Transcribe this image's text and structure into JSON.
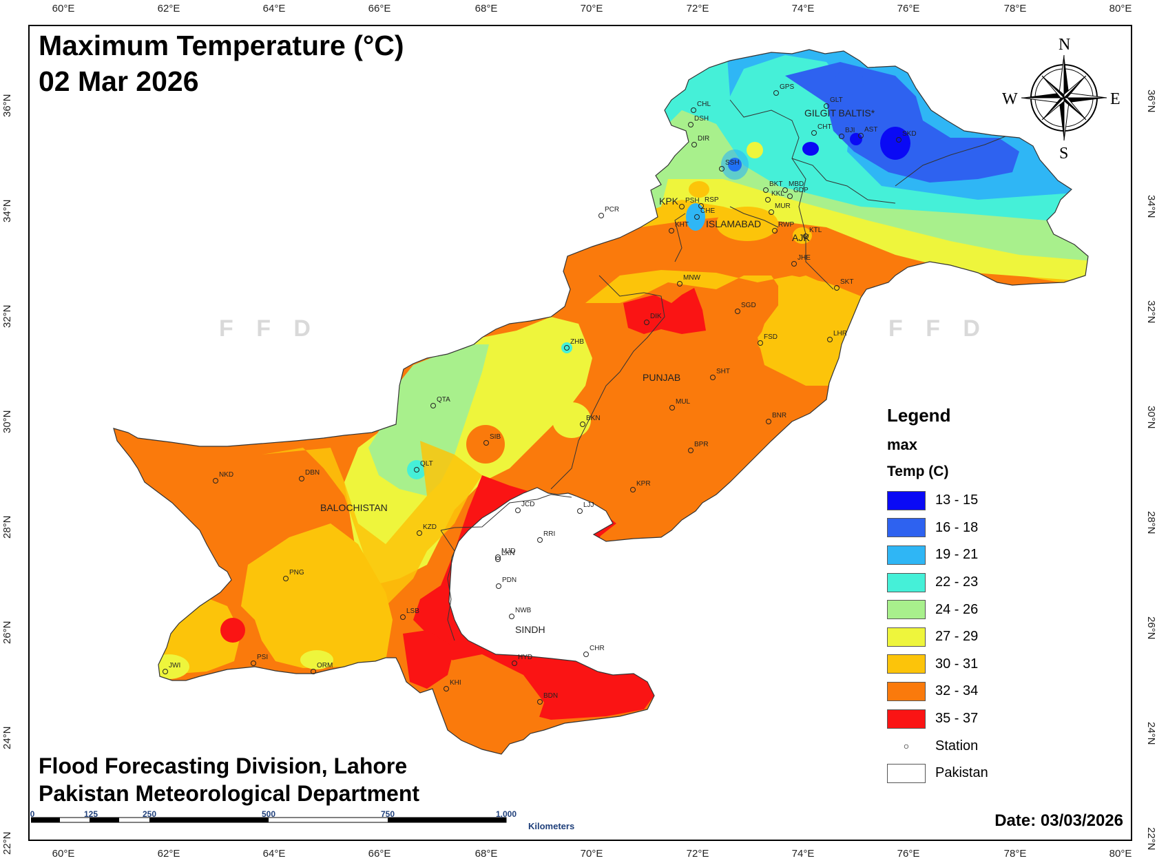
{
  "title": {
    "line1": "Maximum Temperature (°C)",
    "line2": "02 Mar 2026"
  },
  "credit": {
    "line1": "Flood Forecasting Division, Lahore",
    "line2": "Pakistan Meteorological Department"
  },
  "date_label": "Date: 03/03/2026",
  "watermark": "F F D",
  "axes": {
    "lon_ticks": [
      "60°E",
      "62°E",
      "64°E",
      "66°E",
      "68°E",
      "70°E",
      "72°E",
      "74°E",
      "76°E",
      "78°E",
      "80°E"
    ],
    "lat_ticks": [
      "36°N",
      "34°N",
      "32°N",
      "30°N",
      "28°N",
      "26°N",
      "24°N",
      "22°N"
    ]
  },
  "compass": {
    "n": "N",
    "s": "S",
    "e": "E",
    "w": "W"
  },
  "legend": {
    "title": "Legend",
    "field": "max",
    "subtitle": "Temp (C)",
    "classes": [
      {
        "label": "13 - 15",
        "color": "#0a0af5"
      },
      {
        "label": "16 - 18",
        "color": "#2e62f0"
      },
      {
        "label": "19 - 21",
        "color": "#2fb6f5"
      },
      {
        "label": "22 - 23",
        "color": "#45f0d8"
      },
      {
        "label": "24 - 26",
        "color": "#a8f08c"
      },
      {
        "label": "27 - 29",
        "color": "#eef53c"
      },
      {
        "label": "30 - 31",
        "color": "#fcc40a"
      },
      {
        "label": "32 - 34",
        "color": "#fa7a0c"
      },
      {
        "label": "35 - 37",
        "color": "#fa1414"
      }
    ],
    "station_label": "Station",
    "pakistan_label": "Pakistan"
  },
  "regions": {
    "gb": "GILGIT BALTIS*",
    "kpk": "KPK",
    "islamabad": "ISLAMABAD",
    "ajk": "AJK",
    "punjab": "PUNJAB",
    "balochistan": "BALOCHISTAN",
    "sindh": "SINDH"
  },
  "stations": [
    "GPS",
    "GLT",
    "CHL",
    "DSH",
    "CHT",
    "BJI",
    "AST",
    "SKD",
    "DIR",
    "SSH",
    "BKT",
    "MBD",
    "KKL",
    "GDP",
    "MUR",
    "RSP",
    "PSH",
    "CHE",
    "PCR",
    "KHT",
    "RWP",
    "KTL",
    "JHE",
    "MNW",
    "SKT",
    "SGD",
    "DIK",
    "LHR",
    "FSD",
    "ZHB",
    "SHT",
    "QTA",
    "MUL",
    "BKN",
    "BNR",
    "SIB",
    "BPR",
    "QLT",
    "NKD",
    "DBN",
    "KPR",
    "JCD",
    "KZD",
    "LKN",
    "RRI",
    "MJD",
    "PNG",
    "PDN",
    "LSB",
    "NWB",
    "PSI",
    "HYD",
    "CHR",
    "JWI",
    "ORM",
    "KHI",
    "BDN",
    "LJJ"
  ],
  "scale": {
    "ticks": [
      "0",
      "125",
      "250",
      "500",
      "750",
      "1,000"
    ],
    "unit": "Kilometers"
  }
}
